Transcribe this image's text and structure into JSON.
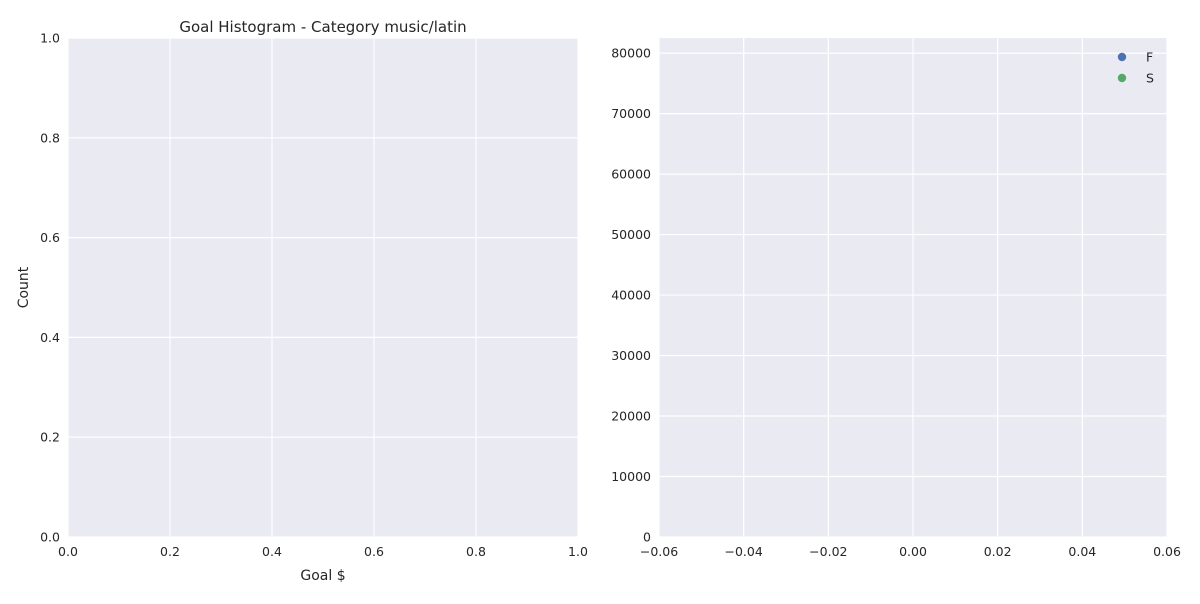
{
  "colors": {
    "axes_bg": "#EAEAF2",
    "grid": "#FFFFFF",
    "text": "#262626",
    "series_f": "#4C72B0",
    "series_s": "#55A868"
  },
  "chart_data": [
    {
      "type": "bar",
      "title": "Goal Histogram - Category music/latin",
      "xlabel": "Goal $",
      "ylabel": "Count",
      "xlim": [
        0.0,
        1.0
      ],
      "ylim": [
        0.0,
        1.0
      ],
      "xticks": [
        0.0,
        0.2,
        0.4,
        0.6,
        0.8,
        1.0
      ],
      "yticks": [
        0.0,
        0.2,
        0.4,
        0.6,
        0.8,
        1.0
      ],
      "xtick_labels": [
        "0.0",
        "0.2",
        "0.4",
        "0.6",
        "0.8",
        "1.0"
      ],
      "ytick_labels": [
        "0.0",
        "0.2",
        "0.4",
        "0.6",
        "0.8",
        "1.0"
      ],
      "grid": true,
      "series": []
    },
    {
      "type": "scatter",
      "title": "",
      "xlabel": "",
      "ylabel": "",
      "xlim": [
        -0.06,
        0.06
      ],
      "ylim": [
        0,
        82500
      ],
      "xticks": [
        -0.06,
        -0.04,
        -0.02,
        0.0,
        0.02,
        0.04,
        0.06
      ],
      "yticks": [
        0,
        10000,
        20000,
        30000,
        40000,
        50000,
        60000,
        70000,
        80000
      ],
      "xtick_labels": [
        "−0.06",
        "−0.04",
        "−0.02",
        "0.00",
        "0.02",
        "0.04",
        "0.06"
      ],
      "ytick_labels": [
        "0",
        "10000",
        "20000",
        "30000",
        "40000",
        "50000",
        "60000",
        "70000",
        "80000"
      ],
      "grid": true,
      "legend_position": "top-right",
      "series": [
        {
          "name": "F",
          "color": "#4C72B0",
          "points": []
        },
        {
          "name": "S",
          "color": "#55A868",
          "points": []
        }
      ]
    }
  ]
}
